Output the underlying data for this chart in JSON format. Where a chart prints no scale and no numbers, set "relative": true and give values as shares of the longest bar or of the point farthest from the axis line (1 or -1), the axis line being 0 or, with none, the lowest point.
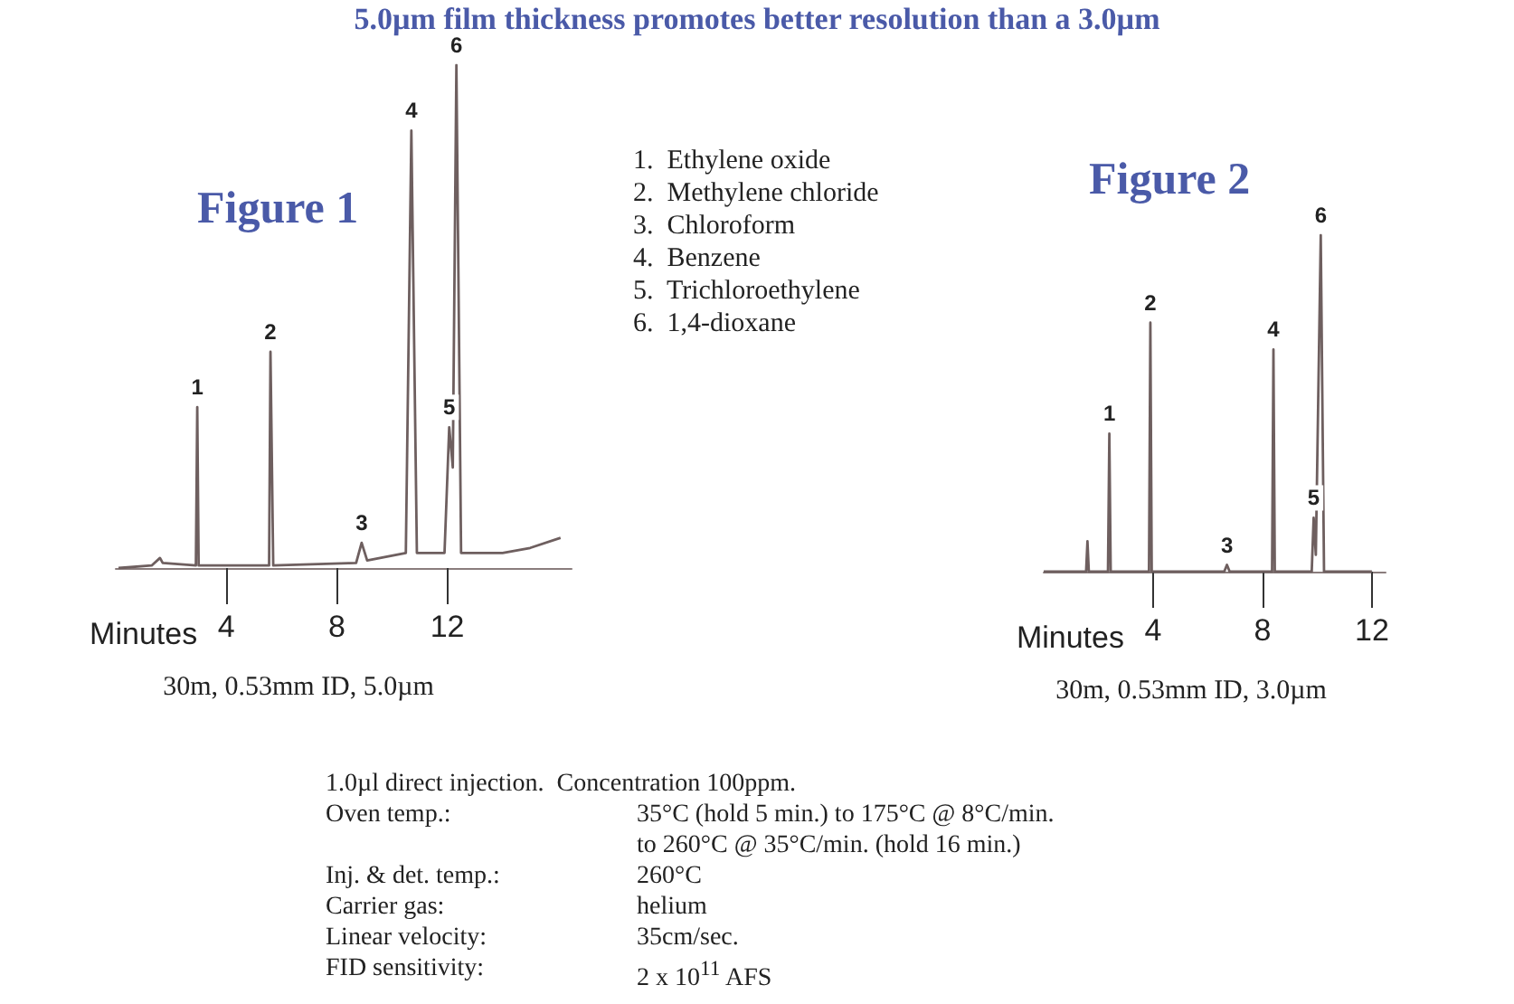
{
  "chart_data": [
    {
      "type": "line",
      "title": "Figure 1",
      "xlabel": "Minutes",
      "relative": true,
      "tick_labels": "x",
      "xlim": [
        0,
        16.5
      ],
      "xticks": [
        4,
        8,
        12
      ],
      "series": [
        {
          "color": "#6e5f5f",
          "x": [
            0.1,
            1.3,
            1.6,
            1.7,
            2.9,
            2.95,
            3.0,
            5.55,
            5.6,
            5.7,
            8.7,
            8.9,
            9.1,
            10.5,
            10.7,
            10.9,
            11.9,
            12.07,
            12.2,
            12.33,
            12.5,
            14,
            15,
            16.1
          ],
          "values": [
            0,
            0.005,
            0.02,
            0.01,
            0.005,
            0.32,
            0.005,
            0.005,
            0.43,
            0.005,
            0.01,
            0.05,
            0.015,
            0.03,
            0.87,
            0.03,
            0.03,
            0.28,
            0.2,
            1,
            0.03,
            0.03,
            0.04,
            0.06
          ]
        }
      ],
      "annotations": [
        {
          "text": "1",
          "x": 2.95,
          "y": 0.32
        },
        {
          "text": "2",
          "x": 5.6,
          "y": 0.43
        },
        {
          "text": "3",
          "x": 8.9,
          "y": 0.05
        },
        {
          "text": "4",
          "x": 10.7,
          "y": 0.87
        },
        {
          "text": "5",
          "x": 12.07,
          "y": 0.28
        },
        {
          "text": "6",
          "x": 12.33,
          "y": 1
        },
        "30m, 0.53mm ID, 5.0µm"
      ]
    },
    {
      "type": "line",
      "title": "Figure 2",
      "xlabel": "Minutes",
      "relative": true,
      "tick_labels": "x",
      "xlim": [
        0,
        12.5
      ],
      "xticks": [
        4,
        8,
        12
      ],
      "series": [
        {
          "color": "#6e5f5f",
          "x": [
            0,
            1.55,
            1.6,
            1.65,
            2.35,
            2.4,
            2.45,
            3.85,
            3.9,
            3.95,
            6.6,
            6.7,
            6.8,
            8.35,
            8.4,
            8.45,
            9.8,
            9.87,
            9.95,
            10.13,
            10.25,
            12.0
          ],
          "values": [
            0,
            0,
            0.09,
            0,
            0,
            0.41,
            0,
            0,
            0.74,
            0,
            0,
            0.02,
            0,
            0,
            0.66,
            0,
            0,
            0.16,
            0.05,
            1,
            0,
            0
          ]
        }
      ],
      "annotations": [
        {
          "text": "1",
          "x": 2.4,
          "y": 0.41
        },
        {
          "text": "2",
          "x": 3.9,
          "y": 0.74
        },
        {
          "text": "3",
          "x": 6.7,
          "y": 0.02
        },
        {
          "text": "4",
          "x": 8.4,
          "y": 0.66
        },
        {
          "text": "5",
          "x": 9.87,
          "y": 0.16
        },
        {
          "text": "6",
          "x": 10.13,
          "y": 1
        },
        "30m, 0.53mm ID, 3.0µm"
      ]
    },
    {
      "type": "other",
      "title": "5.0µm film thickness promotes better resolution than a 3.0µm",
      "annotations": [
        "1.  Ethylene oxide",
        "2.  Methylene chloride",
        "3.  Chloroform",
        "4.  Benzene",
        "5.  Trichloroethylene",
        "6.  1,4-dioxane"
      ]
    },
    {
      "type": "other",
      "annotations": [
        "1.0µl direct injection.  Concentration 100ppm.",
        "Oven temp.: 35°C (hold 5 min.) to 175°C @ 8°C/min.",
        "to 260°C @ 35°C/min. (hold 16 min.)",
        "Inj. & det. temp.: 260°C",
        "Carrier gas: helium",
        "Linear velocity: 35cm/sec.",
        "FID sensitivity: 2 x 10$^{11}$ AFS"
      ]
    }
  ]
}
